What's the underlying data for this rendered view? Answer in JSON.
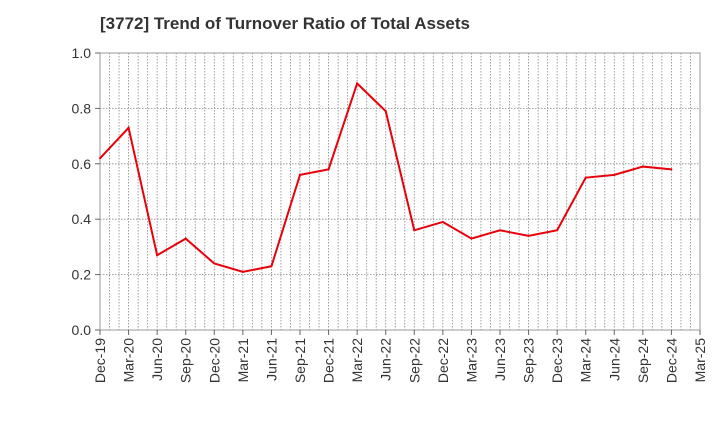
{
  "chart_data": {
    "type": "line",
    "title": "[3772]  Trend of Turnover Ratio of Total Assets",
    "xlabel": "",
    "ylabel": "",
    "ylim": [
      0.0,
      1.0
    ],
    "yticks": [
      "0.0",
      "0.2",
      "0.4",
      "0.6",
      "0.8",
      "1.0"
    ],
    "xticks": [
      "Dec-19",
      "Mar-20",
      "Jun-20",
      "Sep-20",
      "Dec-20",
      "Mar-21",
      "Jun-21",
      "Sep-21",
      "Dec-21",
      "Mar-22",
      "Jun-22",
      "Sep-22",
      "Dec-22",
      "Mar-23",
      "Jun-23",
      "Sep-23",
      "Dec-23",
      "Mar-24",
      "Jun-24",
      "Sep-24",
      "Dec-24",
      "Mar-25"
    ],
    "grid": true,
    "line_color": "#e8000b",
    "series": [
      {
        "x": [
          "Dec-19",
          "Mar-20",
          "Jun-20",
          "Sep-20",
          "Dec-20",
          "Mar-21",
          "Jun-21",
          "Sep-21",
          "Dec-21",
          "Mar-22",
          "Jun-22",
          "Sep-22",
          "Dec-22",
          "Mar-23",
          "Jun-23",
          "Sep-23",
          "Dec-23",
          "Mar-24",
          "Jun-24",
          "Sep-24",
          "Dec-24"
        ],
        "values": [
          0.62,
          0.73,
          0.27,
          0.33,
          0.24,
          0.21,
          0.23,
          0.56,
          0.58,
          0.89,
          0.79,
          0.36,
          0.39,
          0.33,
          0.36,
          0.34,
          0.36,
          0.55,
          0.56,
          0.59,
          0.58
        ]
      }
    ]
  }
}
